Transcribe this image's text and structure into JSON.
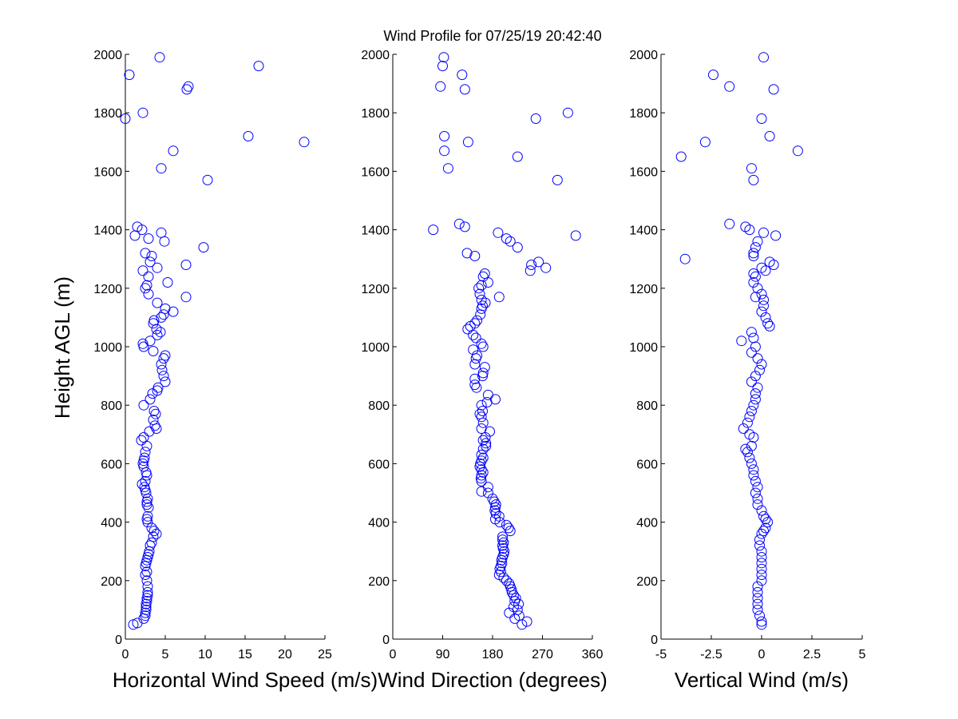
{
  "figure": {
    "title": "Wind Profile for  07/25/19 20:42:40",
    "ylabel": "Height AGL (m)"
  },
  "chart_data": [
    {
      "type": "scatter",
      "xlabel": "Horizontal Wind Speed (m/s)",
      "ylabel": "Height AGL (m)",
      "xlim": [
        0,
        25
      ],
      "ylim": [
        0,
        2000
      ],
      "xticks": [
        0,
        5,
        10,
        15,
        20,
        25
      ],
      "xtick_labels": [
        "0",
        "5",
        "10",
        "15",
        "20",
        "25"
      ],
      "yticks": [
        0,
        200,
        400,
        600,
        800,
        1000,
        1200,
        1400,
        1600,
        1800,
        2000
      ],
      "ytick_labels": [
        "0",
        "200",
        "400",
        "600",
        "800",
        "1000",
        "1200",
        "1400",
        "1600",
        "1800",
        "2000"
      ],
      "marker_color": "#0000ff",
      "points": [
        [
          1.0,
          50
        ],
        [
          1.5,
          55
        ],
        [
          2.3,
          70
        ],
        [
          2.5,
          80
        ],
        [
          2.5,
          90
        ],
        [
          2.6,
          100
        ],
        [
          2.6,
          110
        ],
        [
          2.6,
          120
        ],
        [
          2.7,
          130
        ],
        [
          2.7,
          140
        ],
        [
          2.8,
          150
        ],
        [
          2.8,
          160
        ],
        [
          2.8,
          180
        ],
        [
          2.7,
          200
        ],
        [
          2.5,
          220
        ],
        [
          2.7,
          230
        ],
        [
          2.5,
          250
        ],
        [
          2.6,
          260
        ],
        [
          2.7,
          270
        ],
        [
          2.8,
          280
        ],
        [
          2.9,
          290
        ],
        [
          3.0,
          300
        ],
        [
          3.1,
          320
        ],
        [
          3.3,
          330
        ],
        [
          3.5,
          350
        ],
        [
          3.9,
          360
        ],
        [
          3.6,
          370
        ],
        [
          3.3,
          380
        ],
        [
          2.8,
          400
        ],
        [
          2.7,
          410
        ],
        [
          2.8,
          420
        ],
        [
          2.9,
          450
        ],
        [
          2.7,
          460
        ],
        [
          2.7,
          470
        ],
        [
          2.8,
          480
        ],
        [
          2.6,
          500
        ],
        [
          2.5,
          510
        ],
        [
          2.4,
          520
        ],
        [
          2.1,
          530
        ],
        [
          2.5,
          540
        ],
        [
          2.7,
          560
        ],
        [
          2.6,
          570
        ],
        [
          2.3,
          590
        ],
        [
          2.2,
          600
        ],
        [
          2.3,
          610
        ],
        [
          2.4,
          620
        ],
        [
          2.5,
          640
        ],
        [
          2.7,
          660
        ],
        [
          2.0,
          680
        ],
        [
          2.3,
          690
        ],
        [
          3.0,
          710
        ],
        [
          3.9,
          720
        ],
        [
          3.7,
          730
        ],
        [
          3.5,
          750
        ],
        [
          3.8,
          770
        ],
        [
          3.6,
          780
        ],
        [
          2.3,
          800
        ],
        [
          3.1,
          820
        ],
        [
          3.4,
          840
        ],
        [
          4.0,
          850
        ],
        [
          4.1,
          860
        ],
        [
          5.0,
          880
        ],
        [
          4.8,
          900
        ],
        [
          4.6,
          920
        ],
        [
          4.5,
          940
        ],
        [
          4.8,
          960
        ],
        [
          5.0,
          970
        ],
        [
          3.5,
          985
        ],
        [
          2.3,
          1000
        ],
        [
          2.2,
          1010
        ],
        [
          3.1,
          1020
        ],
        [
          4.0,
          1040
        ],
        [
          4.4,
          1050
        ],
        [
          3.9,
          1060
        ],
        [
          3.5,
          1080
        ],
        [
          3.6,
          1090
        ],
        [
          4.5,
          1100
        ],
        [
          4.8,
          1110
        ],
        [
          6.0,
          1120
        ],
        [
          5.0,
          1130
        ],
        [
          4.0,
          1150
        ],
        [
          7.6,
          1170
        ],
        [
          2.9,
          1180
        ],
        [
          2.5,
          1200
        ],
        [
          2.7,
          1210
        ],
        [
          5.3,
          1220
        ],
        [
          2.9,
          1240
        ],
        [
          2.2,
          1260
        ],
        [
          4.0,
          1270
        ],
        [
          7.6,
          1280
        ],
        [
          3.1,
          1290
        ],
        [
          3.3,
          1310
        ],
        [
          2.5,
          1320
        ],
        [
          9.8,
          1340
        ],
        [
          4.9,
          1360
        ],
        [
          2.9,
          1370
        ],
        [
          1.2,
          1380
        ],
        [
          4.5,
          1390
        ],
        [
          2.1,
          1400
        ],
        [
          1.5,
          1410
        ],
        [
          4.5,
          1610
        ],
        [
          10.3,
          1570
        ],
        [
          6.0,
          1670
        ],
        [
          22.4,
          1700
        ],
        [
          15.4,
          1720
        ],
        [
          0.0,
          1780
        ],
        [
          2.2,
          1800
        ],
        [
          7.7,
          1880
        ],
        [
          7.9,
          1890
        ],
        [
          0.5,
          1930
        ],
        [
          16.7,
          1960
        ],
        [
          4.3,
          1990
        ]
      ]
    },
    {
      "type": "scatter",
      "xlabel": "Wind Direction (degrees)",
      "xlim": [
        0,
        360
      ],
      "ylim": [
        0,
        2000
      ],
      "xticks": [
        0,
        90,
        180,
        270,
        360
      ],
      "xtick_labels": [
        "0",
        "90",
        "180",
        "270",
        "360"
      ],
      "yticks": [
        0,
        200,
        400,
        600,
        800,
        1000,
        1200,
        1400,
        1600,
        1800,
        2000
      ],
      "ytick_labels": [
        "0",
        "200",
        "400",
        "600",
        "800",
        "1000",
        "1200",
        "1400",
        "1600",
        "1800",
        "2000"
      ],
      "marker_color": "#0000ff",
      "points": [
        [
          233,
          50
        ],
        [
          242,
          60
        ],
        [
          220,
          70
        ],
        [
          228,
          80
        ],
        [
          210,
          90
        ],
        [
          225,
          100
        ],
        [
          218,
          110
        ],
        [
          227,
          120
        ],
        [
          220,
          130
        ],
        [
          222,
          140
        ],
        [
          218,
          150
        ],
        [
          215,
          160
        ],
        [
          214,
          170
        ],
        [
          212,
          180
        ],
        [
          210,
          190
        ],
        [
          205,
          200
        ],
        [
          200,
          210
        ],
        [
          192,
          220
        ],
        [
          195,
          230
        ],
        [
          193,
          240
        ],
        [
          195,
          250
        ],
        [
          197,
          260
        ],
        [
          196,
          270
        ],
        [
          198,
          280
        ],
        [
          200,
          290
        ],
        [
          201,
          300
        ],
        [
          199,
          310
        ],
        [
          198,
          320
        ],
        [
          200,
          330
        ],
        [
          198,
          340
        ],
        [
          198,
          350
        ],
        [
          212,
          370
        ],
        [
          209,
          380
        ],
        [
          205,
          390
        ],
        [
          193,
          400
        ],
        [
          185,
          410
        ],
        [
          192,
          420
        ],
        [
          186,
          430
        ],
        [
          184,
          440
        ],
        [
          185,
          450
        ],
        [
          186,
          460
        ],
        [
          183,
          470
        ],
        [
          180,
          480
        ],
        [
          172,
          500
        ],
        [
          160,
          505
        ],
        [
          172,
          520
        ],
        [
          160,
          540
        ],
        [
          159,
          550
        ],
        [
          160,
          560
        ],
        [
          163,
          570
        ],
        [
          160,
          580
        ],
        [
          157,
          590
        ],
        [
          158,
          600
        ],
        [
          160,
          610
        ],
        [
          163,
          620
        ],
        [
          160,
          630
        ],
        [
          163,
          650
        ],
        [
          168,
          660
        ],
        [
          168,
          670
        ],
        [
          163,
          680
        ],
        [
          167,
          690
        ],
        [
          175,
          710
        ],
        [
          160,
          720
        ],
        [
          163,
          740
        ],
        [
          160,
          760
        ],
        [
          157,
          770
        ],
        [
          162,
          780
        ],
        [
          160,
          800
        ],
        [
          170,
          810
        ],
        [
          185,
          820
        ],
        [
          172,
          835
        ],
        [
          151,
          860
        ],
        [
          148,
          870
        ],
        [
          148,
          890
        ],
        [
          162,
          900
        ],
        [
          163,
          910
        ],
        [
          166,
          930
        ],
        [
          148,
          940
        ],
        [
          150,
          960
        ],
        [
          152,
          970
        ],
        [
          145,
          990
        ],
        [
          163,
          1000
        ],
        [
          160,
          1010
        ],
        [
          150,
          1030
        ],
        [
          145,
          1040
        ],
        [
          135,
          1060
        ],
        [
          140,
          1070
        ],
        [
          148,
          1080
        ],
        [
          152,
          1090
        ],
        [
          158,
          1110
        ],
        [
          160,
          1130
        ],
        [
          162,
          1140
        ],
        [
          167,
          1150
        ],
        [
          160,
          1160
        ],
        [
          192,
          1170
        ],
        [
          157,
          1180
        ],
        [
          155,
          1200
        ],
        [
          160,
          1210
        ],
        [
          172,
          1220
        ],
        [
          163,
          1240
        ],
        [
          166,
          1250
        ],
        [
          248,
          1260
        ],
        [
          276,
          1270
        ],
        [
          250,
          1280
        ],
        [
          263,
          1290
        ],
        [
          148,
          1310
        ],
        [
          134,
          1320
        ],
        [
          225,
          1340
        ],
        [
          212,
          1360
        ],
        [
          205,
          1370
        ],
        [
          330,
          1380
        ],
        [
          190,
          1390
        ],
        [
          73,
          1400
        ],
        [
          130,
          1410
        ],
        [
          120,
          1420
        ],
        [
          100,
          1610
        ],
        [
          93,
          1670
        ],
        [
          225,
          1650
        ],
        [
          136,
          1700
        ],
        [
          93,
          1720
        ],
        [
          297,
          1570
        ],
        [
          258,
          1780
        ],
        [
          316,
          1800
        ],
        [
          86,
          1890
        ],
        [
          130,
          1880
        ],
        [
          125,
          1930
        ],
        [
          90,
          1960
        ],
        [
          92,
          1990
        ]
      ]
    },
    {
      "type": "scatter",
      "xlabel": "Vertical Wind (m/s)",
      "xlim": [
        -5,
        5
      ],
      "ylim": [
        0,
        2000
      ],
      "xticks": [
        -5,
        -2.5,
        0,
        2.5,
        5
      ],
      "xtick_labels": [
        "-5",
        "-2.5",
        "0",
        "2.5",
        "5"
      ],
      "yticks": [
        0,
        200,
        400,
        600,
        800,
        1000,
        1200,
        1400,
        1600,
        1800,
        2000
      ],
      "ytick_labels": [
        "0",
        "200",
        "400",
        "600",
        "800",
        "1000",
        "1200",
        "1400",
        "1600",
        "1800",
        "2000"
      ],
      "marker_color": "#0000ff",
      "points": [
        [
          0.0,
          50
        ],
        [
          0.0,
          60
        ],
        [
          -0.1,
          80
        ],
        [
          -0.2,
          100
        ],
        [
          -0.2,
          120
        ],
        [
          -0.2,
          140
        ],
        [
          -0.2,
          160
        ],
        [
          -0.2,
          180
        ],
        [
          0.0,
          200
        ],
        [
          0.0,
          220
        ],
        [
          0.0,
          240
        ],
        [
          0.0,
          260
        ],
        [
          0.0,
          280
        ],
        [
          0.0,
          300
        ],
        [
          -0.1,
          320
        ],
        [
          -0.1,
          340
        ],
        [
          0.0,
          360
        ],
        [
          0.1,
          370
        ],
        [
          0.2,
          380
        ],
        [
          0.3,
          400
        ],
        [
          0.2,
          410
        ],
        [
          0.1,
          420
        ],
        [
          0.0,
          440
        ],
        [
          -0.2,
          460
        ],
        [
          -0.2,
          480
        ],
        [
          -0.3,
          500
        ],
        [
          -0.2,
          520
        ],
        [
          -0.3,
          540
        ],
        [
          -0.4,
          560
        ],
        [
          -0.4,
          580
        ],
        [
          -0.5,
          600
        ],
        [
          -0.6,
          620
        ],
        [
          -0.7,
          640
        ],
        [
          -0.8,
          650
        ],
        [
          -0.5,
          660
        ],
        [
          -0.4,
          690
        ],
        [
          -0.6,
          700
        ],
        [
          -0.9,
          720
        ],
        [
          -0.7,
          740
        ],
        [
          -0.6,
          760
        ],
        [
          -0.5,
          780
        ],
        [
          -0.4,
          800
        ],
        [
          -0.3,
          820
        ],
        [
          -0.3,
          840
        ],
        [
          -0.2,
          860
        ],
        [
          -0.5,
          880
        ],
        [
          -0.3,
          900
        ],
        [
          -0.1,
          920
        ],
        [
          0.0,
          940
        ],
        [
          -0.2,
          960
        ],
        [
          -0.5,
          980
        ],
        [
          -0.3,
          1000
        ],
        [
          -1.0,
          1020
        ],
        [
          -0.4,
          1030
        ],
        [
          -0.5,
          1050
        ],
        [
          0.4,
          1070
        ],
        [
          0.3,
          1080
        ],
        [
          0.2,
          1100
        ],
        [
          0.0,
          1120
        ],
        [
          0.1,
          1140
        ],
        [
          0.1,
          1160
        ],
        [
          -0.3,
          1170
        ],
        [
          0.0,
          1180
        ],
        [
          -0.2,
          1200
        ],
        [
          -0.4,
          1220
        ],
        [
          -0.3,
          1240
        ],
        [
          -0.4,
          1250
        ],
        [
          0.2,
          1260
        ],
        [
          0.0,
          1270
        ],
        [
          0.6,
          1280
        ],
        [
          0.4,
          1290
        ],
        [
          -3.8,
          1300
        ],
        [
          -0.4,
          1310
        ],
        [
          -0.4,
          1320
        ],
        [
          -0.3,
          1340
        ],
        [
          -0.2,
          1360
        ],
        [
          0.7,
          1380
        ],
        [
          0.1,
          1390
        ],
        [
          -0.6,
          1400
        ],
        [
          -0.8,
          1410
        ],
        [
          -1.6,
          1420
        ],
        [
          -0.4,
          1570
        ],
        [
          -0.5,
          1610
        ],
        [
          -4.0,
          1650
        ],
        [
          1.8,
          1670
        ],
        [
          -2.8,
          1700
        ],
        [
          0.4,
          1720
        ],
        [
          0.0,
          1780
        ],
        [
          -1.6,
          1890
        ],
        [
          0.6,
          1880
        ],
        [
          -2.4,
          1930
        ],
        [
          0.1,
          1990
        ]
      ]
    }
  ]
}
